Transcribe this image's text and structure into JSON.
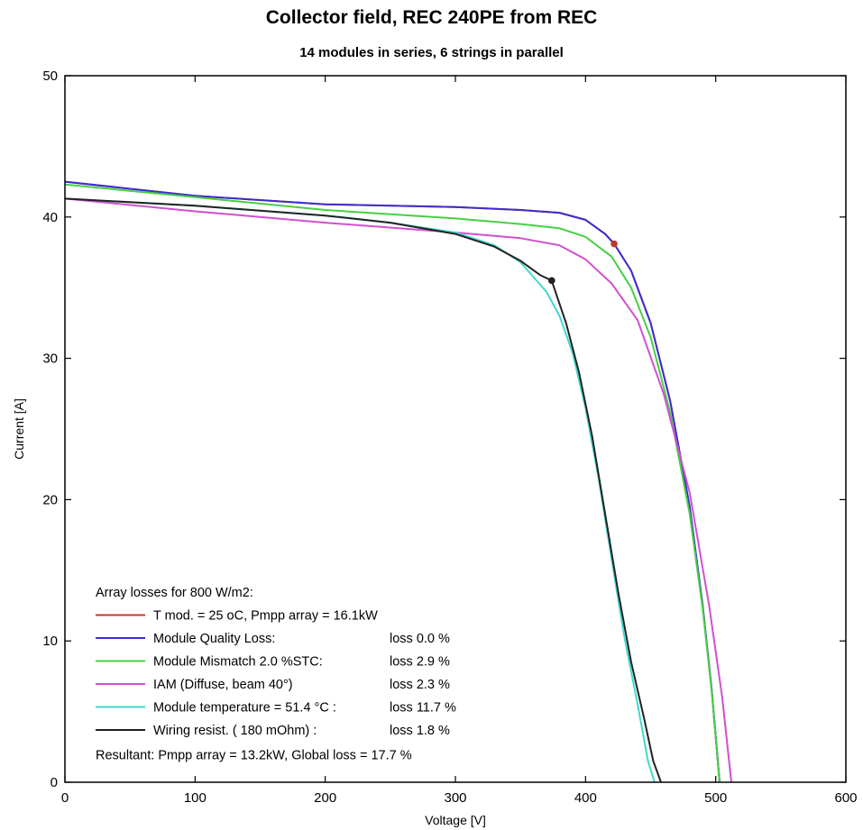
{
  "chart_data": {
    "type": "line",
    "title": "Collector field, REC 240PE from REC",
    "subtitle": "14 modules in series, 6 strings in parallel",
    "xlabel": "Voltage [V]",
    "ylabel": "Current [A]",
    "xlim": [
      0,
      600
    ],
    "ylim": [
      0,
      50
    ],
    "xticks": [
      0,
      100,
      200,
      300,
      400,
      500,
      600
    ],
    "yticks": [
      0,
      10,
      20,
      30,
      40,
      50
    ],
    "grid": false,
    "legend": {
      "placement": "bottom-left",
      "header": "Array losses for  800 W/m2:",
      "entries": [
        {
          "label": "T mod. = 25 oC,   Pmpp array =   16.1kW",
          "loss": ""
        },
        {
          "label": "Module Quality Loss:",
          "loss": "loss  0.0 %"
        },
        {
          "label": "Module Mismatch 2.0 %STC:",
          "loss": "loss  2.9 %"
        },
        {
          "label": "IAM (Diffuse, beam 40°)",
          "loss": "loss  2.3 %"
        },
        {
          "label": "Module temperature = 51.4 °C :",
          "loss": "loss  11.7 %"
        },
        {
          "label": "Wiring resist.   ( 180 mOhm) :",
          "loss": "loss  1.8 %"
        }
      ],
      "footer": "Resultant: Pmpp array =   13.2kW, Global loss = 17.7 %"
    },
    "series": [
      {
        "color": "#c0392b",
        "mpp": [
          422,
          38.1
        ],
        "points": [
          [
            0,
            42.5
          ],
          [
            100,
            41.5
          ],
          [
            200,
            40.9
          ],
          [
            300,
            40.7
          ],
          [
            350,
            40.5
          ],
          [
            380,
            40.3
          ],
          [
            400,
            39.8
          ],
          [
            415,
            38.8
          ],
          [
            422,
            38.1
          ],
          [
            435,
            36.2
          ],
          [
            450,
            32.5
          ],
          [
            465,
            27.0
          ],
          [
            480,
            19.5
          ],
          [
            490,
            12.5
          ],
          [
            497,
            6.5
          ],
          [
            503,
            0
          ]
        ]
      },
      {
        "color": "#3b2fd0",
        "mpp": null,
        "points": [
          [
            0,
            42.5
          ],
          [
            100,
            41.5
          ],
          [
            200,
            40.9
          ],
          [
            300,
            40.7
          ],
          [
            350,
            40.5
          ],
          [
            380,
            40.3
          ],
          [
            400,
            39.8
          ],
          [
            415,
            38.8
          ],
          [
            422,
            38.1
          ],
          [
            435,
            36.2
          ],
          [
            450,
            32.5
          ],
          [
            465,
            27.0
          ],
          [
            480,
            19.5
          ],
          [
            490,
            12.5
          ],
          [
            497,
            6.5
          ],
          [
            503,
            0
          ]
        ]
      },
      {
        "color": "#45d045",
        "mpp": null,
        "points": [
          [
            0,
            42.3
          ],
          [
            100,
            41.4
          ],
          [
            200,
            40.5
          ],
          [
            300,
            39.9
          ],
          [
            350,
            39.5
          ],
          [
            380,
            39.2
          ],
          [
            400,
            38.6
          ],
          [
            420,
            37.2
          ],
          [
            435,
            35.0
          ],
          [
            450,
            31.5
          ],
          [
            465,
            26.2
          ],
          [
            480,
            19.0
          ],
          [
            490,
            12.3
          ],
          [
            497,
            6.4
          ],
          [
            503,
            0
          ]
        ]
      },
      {
        "color": "#d050d0",
        "mpp": null,
        "points": [
          [
            0,
            41.3
          ],
          [
            100,
            40.4
          ],
          [
            200,
            39.6
          ],
          [
            300,
            38.9
          ],
          [
            350,
            38.5
          ],
          [
            380,
            38.0
          ],
          [
            400,
            37.0
          ],
          [
            420,
            35.3
          ],
          [
            440,
            32.7
          ],
          [
            460,
            27.5
          ],
          [
            480,
            20.5
          ],
          [
            495,
            12.5
          ],
          [
            505,
            6.0
          ],
          [
            512,
            0
          ]
        ]
      },
      {
        "color": "#40d8d0",
        "mpp": null,
        "points": [
          [
            0,
            41.3
          ],
          [
            100,
            40.8
          ],
          [
            200,
            40.1
          ],
          [
            250,
            39.6
          ],
          [
            300,
            38.9
          ],
          [
            330,
            38.0
          ],
          [
            350,
            36.8
          ],
          [
            370,
            34.7
          ],
          [
            380,
            33.0
          ],
          [
            390,
            30.4
          ],
          [
            400,
            26.5
          ],
          [
            410,
            21.5
          ],
          [
            420,
            15.8
          ],
          [
            430,
            10.2
          ],
          [
            440,
            5.5
          ],
          [
            448,
            1.5
          ],
          [
            453,
            0
          ]
        ]
      },
      {
        "color": "#222222",
        "mpp": [
          374,
          35.5
        ],
        "points": [
          [
            0,
            41.3
          ],
          [
            100,
            40.8
          ],
          [
            200,
            40.1
          ],
          [
            250,
            39.6
          ],
          [
            300,
            38.8
          ],
          [
            330,
            37.9
          ],
          [
            350,
            36.9
          ],
          [
            365,
            35.9
          ],
          [
            374,
            35.5
          ],
          [
            385,
            32.5
          ],
          [
            395,
            29.0
          ],
          [
            405,
            24.5
          ],
          [
            415,
            19.0
          ],
          [
            425,
            13.5
          ],
          [
            435,
            8.5
          ],
          [
            445,
            4.5
          ],
          [
            452,
            1.5
          ],
          [
            458,
            0
          ]
        ]
      }
    ]
  }
}
